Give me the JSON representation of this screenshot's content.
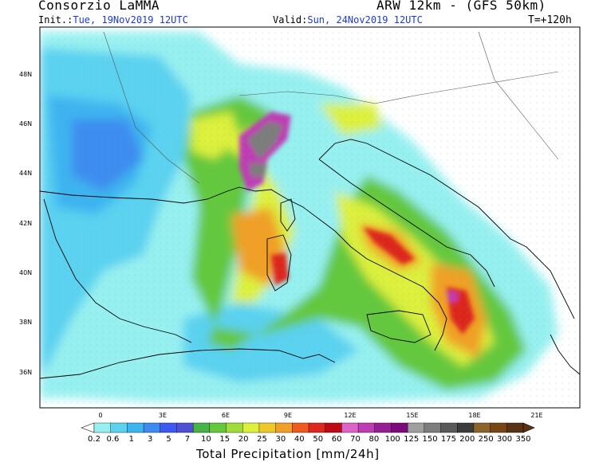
{
  "header": {
    "title": "Consorzio LaMMA",
    "model": "ARW 12km - (GFS 50km)",
    "init_label": "Init.:",
    "init_value": "Tue, 19Nov2019 12UTC",
    "valid_label": "Valid:",
    "valid_value": "Sun, 24Nov2019 12UTC",
    "lead_time": "T=+120h"
  },
  "map": {
    "lat_labels": [
      "48N",
      "46N",
      "44N",
      "42N",
      "40N",
      "38N",
      "36N"
    ],
    "lon_labels": [
      "0",
      "3E",
      "6E",
      "9E",
      "12E",
      "15E",
      "18E",
      "21E"
    ]
  },
  "colorbar": {
    "labels": [
      "0.2",
      "0.6",
      "1",
      "3",
      "5",
      "7",
      "10",
      "15",
      "20",
      "25",
      "30",
      "40",
      "50",
      "60",
      "70",
      "80",
      "100",
      "125",
      "150",
      "175",
      "200",
      "250",
      "300",
      "350"
    ],
    "colors": [
      "#96f0f0",
      "#5ad2f0",
      "#3cb4f0",
      "#3c8cf0",
      "#3c5af0",
      "#5050d2",
      "#46b446",
      "#64c83c",
      "#a0dc3c",
      "#dcf03c",
      "#f0c828",
      "#f0a028",
      "#f05a1e",
      "#dc281e",
      "#be0a14",
      "#dc64c8",
      "#be3cb4",
      "#961e96",
      "#7d0a7d",
      "#a0a0a0",
      "#7d7d7d",
      "#5a5a5a",
      "#3c3c3c",
      "#8c6428",
      "#784614",
      "#5a3214"
    ],
    "caption": "Total Precipitation [mm/24h]"
  }
}
